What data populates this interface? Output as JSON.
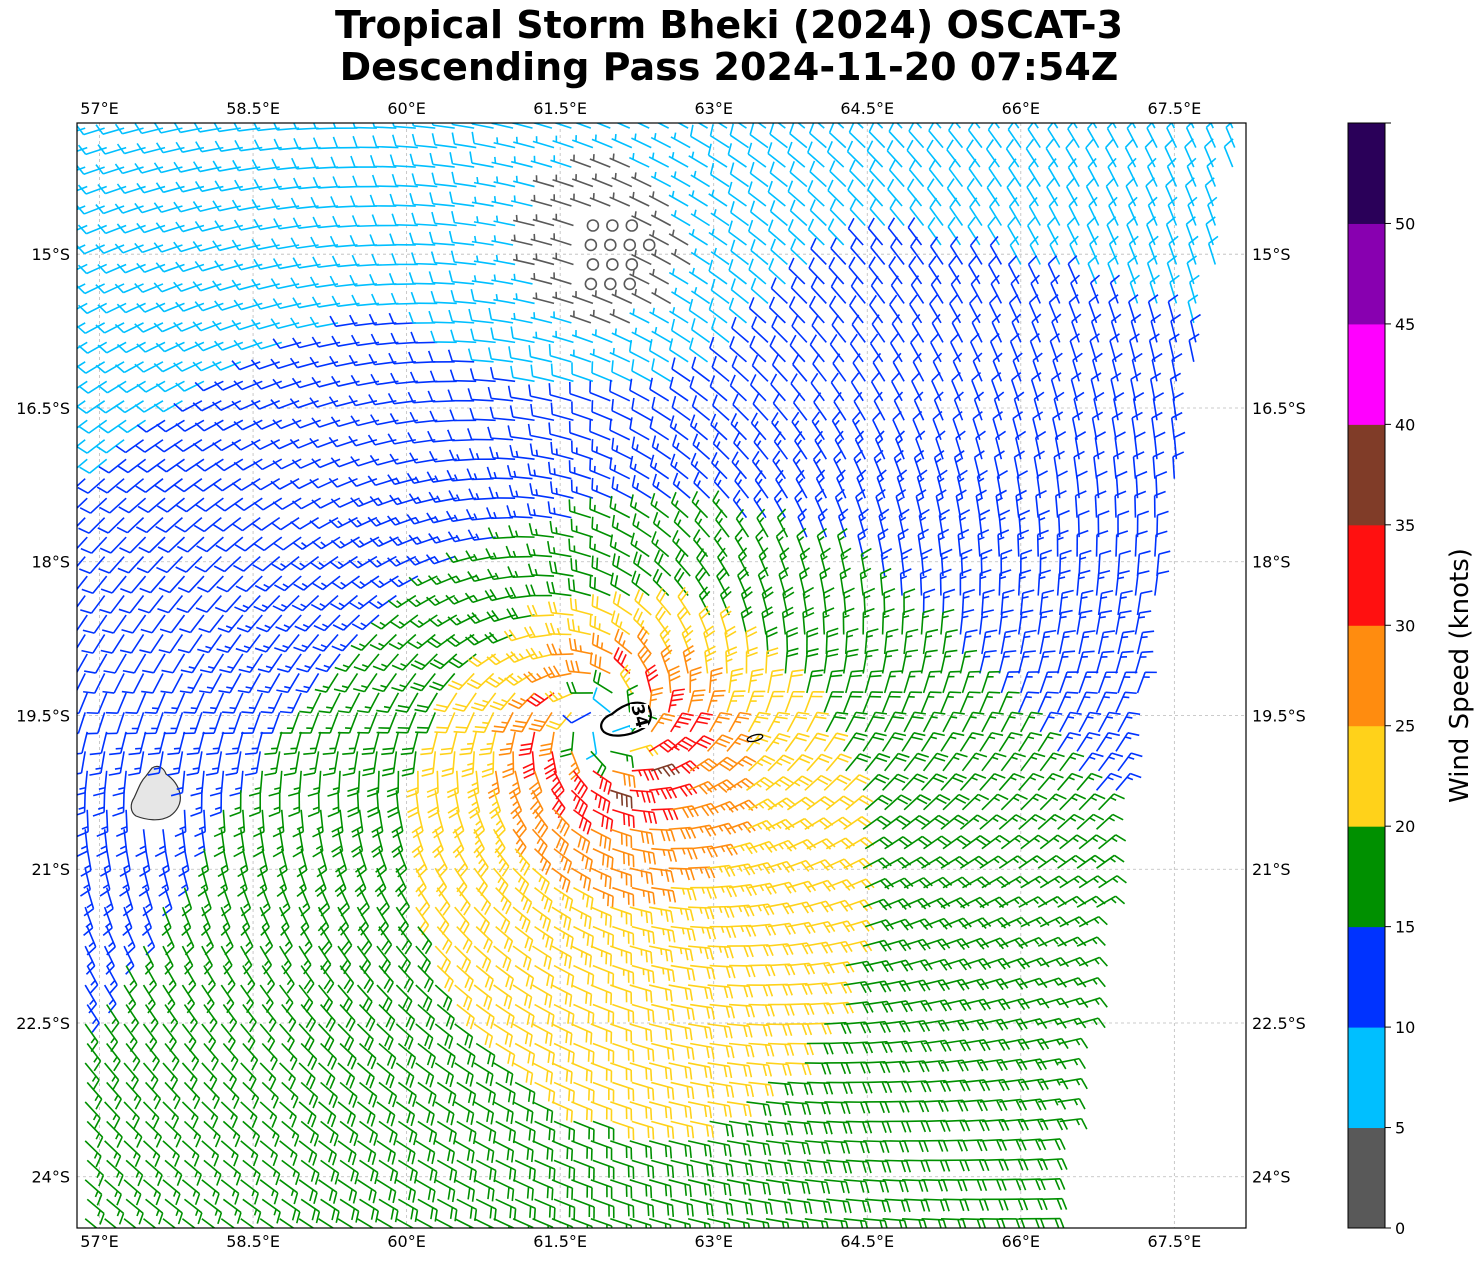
{
  "title": {
    "line1": "Tropical Storm Bheki (2024) OSCAT-3",
    "line2": "Descending Pass 2024-11-20 07:54Z"
  },
  "map": {
    "lon_min": 56.78,
    "lon_max": 68.2,
    "lat_max": -13.72,
    "lat_min": -24.5,
    "lon_ticks": [
      {
        "value": 57.0,
        "label": "57°E"
      },
      {
        "value": 58.5,
        "label": "58.5°E"
      },
      {
        "value": 60.0,
        "label": "60°E"
      },
      {
        "value": 61.5,
        "label": "61.5°E"
      },
      {
        "value": 63.0,
        "label": "63°E"
      },
      {
        "value": 64.5,
        "label": "64.5°E"
      },
      {
        "value": 66.0,
        "label": "66°E"
      },
      {
        "value": 67.5,
        "label": "67.5°E"
      }
    ],
    "lat_ticks": [
      {
        "value": -15.0,
        "label": "15°S"
      },
      {
        "value": -16.5,
        "label": "16.5°S"
      },
      {
        "value": -18.0,
        "label": "18°S"
      },
      {
        "value": -19.5,
        "label": "19.5°S"
      },
      {
        "value": -21.0,
        "label": "21°S"
      },
      {
        "value": -22.5,
        "label": "22.5°S"
      },
      {
        "value": -24.0,
        "label": "24°S"
      }
    ],
    "grid": true,
    "storm_center": {
      "lon": 61.95,
      "lat": -19.6
    },
    "contour_label": "34",
    "island_name_shown": false,
    "land_color": "#e8e8e8"
  },
  "colorbar": {
    "label": "Wind Speed (knots)",
    "ticks": [
      "0",
      "5",
      "10",
      "15",
      "20",
      "25",
      "30",
      "35",
      "40",
      "45",
      "50"
    ],
    "bins": [
      {
        "min": 0,
        "max": 5,
        "color": "#595959"
      },
      {
        "min": 5,
        "max": 10,
        "color": "#00bfff"
      },
      {
        "min": 10,
        "max": 15,
        "color": "#0033ff"
      },
      {
        "min": 15,
        "max": 20,
        "color": "#009000"
      },
      {
        "min": 20,
        "max": 25,
        "color": "#ffd21a"
      },
      {
        "min": 25,
        "max": 30,
        "color": "#ff8c0f"
      },
      {
        "min": 30,
        "max": 35,
        "color": "#ff1010"
      },
      {
        "min": 35,
        "max": 40,
        "color": "#803c28"
      },
      {
        "min": 40,
        "max": 45,
        "color": "#ff00ff"
      },
      {
        "min": 45,
        "max": 50,
        "color": "#8800b0"
      },
      {
        "min": 50,
        "max": 55,
        "color": "#2a0059"
      }
    ]
  },
  "wind_field": {
    "units": "knots",
    "peak_speed": 33,
    "radius_of_max_wind_deg": 0.55,
    "rotation": "clockwise",
    "swath_east_edge": {
      "top_lon": 68.15,
      "bottom_lon": 66.2
    }
  }
}
